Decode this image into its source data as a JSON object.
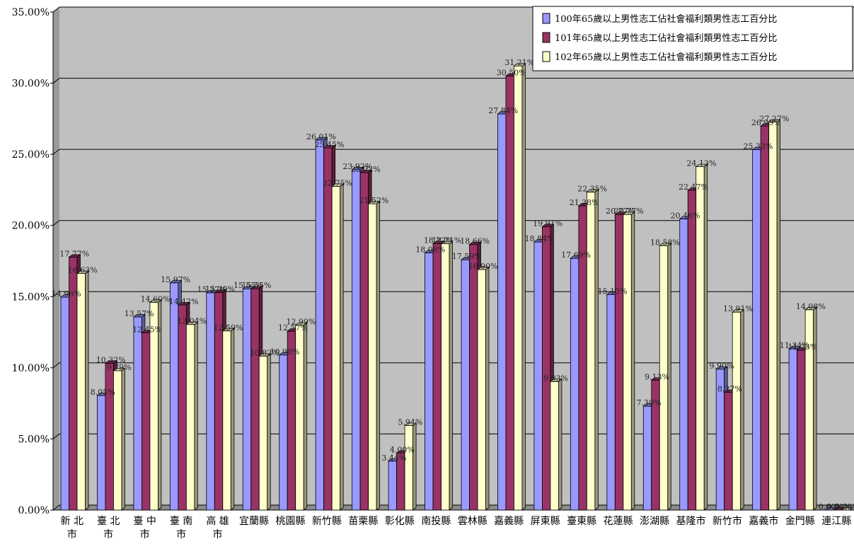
{
  "chart_data": {
    "type": "bar",
    "title": "",
    "xlabel": "",
    "ylabel": "",
    "ylim": [
      0,
      35
    ],
    "y_ticks": [
      "0.00%",
      "5.00%",
      "10.00%",
      "15.00%",
      "20.00%",
      "25.00%",
      "30.00%",
      "35.00%"
    ],
    "grid": true,
    "legend_position": "top-right",
    "categories": [
      "新北市",
      "臺北市",
      "臺中市",
      "臺南市",
      "高雄市",
      "宜蘭縣",
      "桃園縣",
      "新竹縣",
      "苗栗縣",
      "彰化縣",
      "南投縣",
      "雲林縣",
      "嘉義縣",
      "屏東縣",
      "臺東縣",
      "花蓮縣",
      "澎湖縣",
      "基隆市",
      "新竹市",
      "嘉義市",
      "金門縣",
      "連江縣"
    ],
    "category_lines": [
      [
        "新 北",
        "市"
      ],
      [
        "臺 北",
        "市"
      ],
      [
        "臺 中",
        "市"
      ],
      [
        "臺 南",
        "市"
      ],
      [
        "高 雄",
        "市"
      ],
      [
        "宜蘭縣"
      ],
      [
        "桃園縣"
      ],
      [
        "新竹縣"
      ],
      [
        "苗栗縣"
      ],
      [
        "彰化縣"
      ],
      [
        "南投縣"
      ],
      [
        "雲林縣"
      ],
      [
        "嘉義縣"
      ],
      [
        "屏東縣"
      ],
      [
        "臺東縣"
      ],
      [
        "花蓮縣"
      ],
      [
        "澎湖縣"
      ],
      [
        "基隆市"
      ],
      [
        "新竹市"
      ],
      [
        "嘉義市"
      ],
      [
        "金門縣"
      ],
      [
        "連江縣"
      ]
    ],
    "series": [
      {
        "name": "100年65歲以上男性志工佔社會福利類男性志工百分比",
        "color": "#9999ff",
        "values": [
          14.96,
          8.05,
          13.57,
          15.97,
          15.27,
          15.55,
          10.9,
          26.01,
          23.92,
          3.44,
          18.08,
          17.59,
          27.84,
          18.84,
          17.69,
          15.15,
          7.3,
          20.46,
          9.9,
          25.33,
          11.34,
          0.0
        ],
        "labels": [
          "14.96%",
          "8.05%",
          "13.57%",
          "15.97%",
          "15.27%",
          "15.55%",
          "10.90%",
          "26.01%",
          "23.92%",
          "3.44%",
          "18.08%",
          "17.59%",
          "27.84%",
          "18.84%",
          "17.69%",
          "15.15%",
          "7.30%",
          "20.46%",
          "9.90%",
          "25.33%",
          "11.34%",
          "0.00%"
        ]
      },
      {
        "name": "101年65歲以上男性志工佔社會福利類男性志工百分比",
        "color": "#993366",
        "values": [
          17.77,
          10.32,
          12.45,
          14.42,
          15.29,
          15.55,
          12.57,
          25.45,
          23.72,
          4.0,
          18.72,
          18.66,
          30.5,
          19.91,
          21.38,
          20.77,
          9.13,
          22.47,
          8.27,
          26.99,
          11.23,
          0.0
        ],
        "labels": [
          "17.77%",
          "10.32%",
          "12.45%",
          "14.42%",
          "15.29%",
          "15.55%",
          "12.57%",
          "25.45%",
          "23.72%",
          "4.00%",
          "18.72%",
          "18.66%",
          "30.50%",
          "19.91%",
          "21.38%",
          "20.77%",
          "9.13%",
          "22.47%",
          "8.27%",
          "26.99%",
          "11.23%",
          "0.00%"
        ]
      },
      {
        "name": "102年65歲以上男性志工佔社會福利類男性志工百分比",
        "color": "#ffffcc",
        "values": [
          16.63,
          9.79,
          14.6,
          13.04,
          12.59,
          10.82,
          12.99,
          22.75,
          21.52,
          5.94,
          18.71,
          16.9,
          31.21,
          9.03,
          22.35,
          20.77,
          18.58,
          24.13,
          13.91,
          27.27,
          14.08,
          0.0
        ],
        "labels": [
          "16.63%",
          "9.79%",
          "14.60%",
          "13.04%",
          "12.59%",
          "10.82%",
          "12.99%",
          "22.75%",
          "21.52%",
          "5.94%",
          "18.71%",
          "16.90%",
          "31.21%",
          "9.03%",
          "22.35%",
          "20.77%",
          "18.58%",
          "24.13%",
          "13.91%",
          "27.27%",
          "14.08%",
          "0.00%"
        ]
      }
    ]
  }
}
